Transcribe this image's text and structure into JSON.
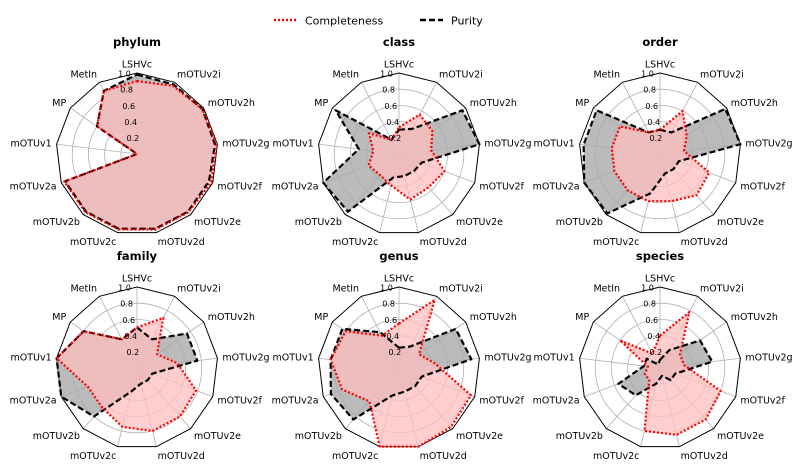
{
  "legend": [
    {
      "label": "Completeness",
      "color": "#ff0000",
      "style": "dotted"
    },
    {
      "label": "Purity",
      "color": "#000000",
      "style": "dashed"
    }
  ],
  "chart_data": {
    "type": "radar",
    "axes": [
      "LSHVc",
      "mOTUv2i",
      "mOTUv2h",
      "mOTUv2g",
      "mOTUv2f",
      "mOTUv2e",
      "mOTUv2d",
      "mOTUv2c",
      "mOTUv2b",
      "mOTUv2a",
      "mOTUv1",
      "MP",
      "MetIn"
    ],
    "rtick_values": [
      0.2,
      0.4,
      0.6,
      0.8,
      1.0
    ],
    "rtick_labels": [
      "0.2",
      "0.4",
      "0.6",
      "0.8",
      "1.0"
    ],
    "rlim": [
      0,
      1
    ],
    "legend_position": "top-center",
    "colors": {
      "completeness": "#ff0000",
      "purity": "#000000",
      "completeness_fill": "#ffbfbf",
      "purity_fill": "#aaaaaa",
      "grid": "#b0b0b0"
    },
    "panels": [
      {
        "title": "phylum",
        "series": [
          {
            "name": "Completeness",
            "values": [
              0.9,
              0.95,
              0.98,
              0.99,
              0.98,
              0.96,
              0.96,
              0.96,
              0.96,
              0.96,
              0.0,
              0.6,
              0.88
            ]
          },
          {
            "name": "Purity",
            "values": [
              0.98,
              0.97,
              0.98,
              0.97,
              0.95,
              0.95,
              0.95,
              0.95,
              0.95,
              0.95,
              0.0,
              0.6,
              0.88
            ]
          }
        ]
      },
      {
        "title": "class",
        "series": [
          {
            "name": "Completeness",
            "values": [
              0.33,
              0.55,
              0.5,
              0.4,
              0.6,
              0.55,
              0.58,
              0.4,
              0.35,
              0.4,
              0.32,
              0.45,
              0.2
            ]
          },
          {
            "name": "Purity",
            "values": [
              0.3,
              0.35,
              0.95,
              1.0,
              0.3,
              0.28,
              0.28,
              0.3,
              0.95,
              1.0,
              0.5,
              0.95,
              0.2
            ]
          }
        ]
      },
      {
        "title": "order",
        "series": [
          {
            "name": "Completeness",
            "values": [
              0.3,
              0.6,
              0.4,
              0.3,
              0.65,
              0.68,
              0.6,
              0.6,
              0.6,
              0.6,
              0.6,
              0.6,
              0.3
            ]
          },
          {
            "name": "Purity",
            "values": [
              0.3,
              0.3,
              0.98,
              1.0,
              0.25,
              0.25,
              0.25,
              0.5,
              0.98,
              1.0,
              0.95,
              0.95,
              0.3
            ]
          }
        ]
      },
      {
        "title": "family",
        "series": [
          {
            "name": "Completeness",
            "values": [
              0.5,
              0.7,
              0.3,
              0.5,
              0.78,
              0.8,
              0.8,
              0.75,
              0.65,
              0.65,
              1.0,
              0.8,
              0.4
            ]
          },
          {
            "name": "Purity",
            "values": [
              0.5,
              0.4,
              0.75,
              0.75,
              0.2,
              0.2,
              0.2,
              0.3,
              0.8,
              1.0,
              1.0,
              0.8,
              0.4
            ]
          }
        ]
      },
      {
        "title": "genus",
        "series": [
          {
            "name": "Completeness",
            "values": [
              0.55,
              0.95,
              0.3,
              0.45,
              0.95,
              0.97,
              1.0,
              1.0,
              0.55,
              0.75,
              0.85,
              0.8,
              0.45
            ]
          },
          {
            "name": "Purity",
            "values": [
              0.25,
              0.3,
              0.85,
              0.9,
              0.3,
              0.3,
              0.3,
              0.35,
              0.85,
              0.9,
              0.85,
              0.85,
              0.5
            ]
          }
        ]
      },
      {
        "title": "species",
        "series": [
          {
            "name": "Completeness",
            "values": [
              0.4,
              0.78,
              0.3,
              0.3,
              0.8,
              0.85,
              0.85,
              0.8,
              0.2,
              0.2,
              0.15,
              0.6,
              0.2
            ]
          },
          {
            "name": "Purity",
            "values": [
              0.1,
              0.25,
              0.6,
              0.65,
              0.2,
              0.2,
              0.1,
              0.2,
              0.45,
              0.55,
              0.2,
              0.2,
              0.05
            ]
          }
        ]
      }
    ]
  }
}
